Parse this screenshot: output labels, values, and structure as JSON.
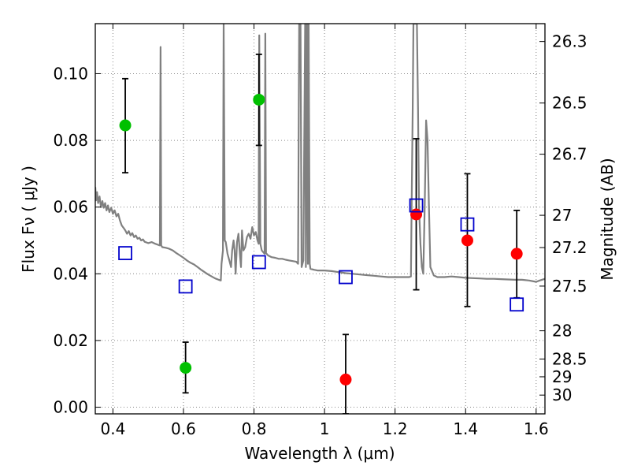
{
  "chart_data": {
    "type": "scatter",
    "title": "",
    "xlabel": "Wavelength  λ (μm)",
    "ylabel": "Flux  Fν  ( μJy )",
    "y2label": "Magnitude (AB)",
    "xlim": [
      0.35,
      1.625
    ],
    "ylim": [
      -0.002,
      0.115
    ],
    "grid": true,
    "x_ticks": [
      {
        "value": 0.4,
        "label": "0.4"
      },
      {
        "value": 0.6,
        "label": "0.6"
      },
      {
        "value": 0.8,
        "label": "0.8"
      },
      {
        "value": 1.0,
        "label": "1"
      },
      {
        "value": 1.2,
        "label": "1.2"
      },
      {
        "value": 1.4,
        "label": "1.4"
      },
      {
        "value": 1.6,
        "label": "1.6"
      }
    ],
    "y_ticks": [
      {
        "value": 0.0,
        "label": "0.00"
      },
      {
        "value": 0.02,
        "label": "0.02"
      },
      {
        "value": 0.04,
        "label": "0.04"
      },
      {
        "value": 0.06,
        "label": "0.06"
      },
      {
        "value": 0.08,
        "label": "0.08"
      },
      {
        "value": 0.1,
        "label": "0.10"
      }
    ],
    "y2_ticks": [
      {
        "value": 26.3,
        "label": "26.3"
      },
      {
        "value": 26.5,
        "label": "26.5"
      },
      {
        "value": 26.7,
        "label": "26.7"
      },
      {
        "value": 27.0,
        "label": "27"
      },
      {
        "value": 27.2,
        "label": "27.2"
      },
      {
        "value": 27.5,
        "label": "27.5"
      },
      {
        "value": 28.0,
        "label": "28"
      },
      {
        "value": 28.5,
        "label": "28.5"
      },
      {
        "value": 29.0,
        "label": "29"
      },
      {
        "value": 30.0,
        "label": "30"
      }
    ],
    "colors": {
      "model": "#808080",
      "green": "#00c000",
      "red": "#ff0000",
      "model_box": "#0000cc",
      "errorbar": "#000000",
      "grid": "#888888"
    },
    "series": [
      {
        "marker": "circle",
        "color": "green",
        "points": [
          {
            "x": 0.435,
            "y": 0.0845,
            "ylo": 0.0703,
            "yhi": 0.0985
          },
          {
            "x": 0.606,
            "y": 0.0118,
            "ylo": 0.0043,
            "yhi": 0.0195
          },
          {
            "x": 0.814,
            "y": 0.0922,
            "ylo": 0.0785,
            "yhi": 0.1058
          }
        ]
      },
      {
        "marker": "circle",
        "color": "red",
        "points": [
          {
            "x": 1.06,
            "y": 0.0083,
            "ylo": -0.002,
            "yhi": 0.0218
          },
          {
            "x": 1.26,
            "y": 0.0578,
            "ylo": 0.0352,
            "yhi": 0.0805
          },
          {
            "x": 1.405,
            "y": 0.05,
            "ylo": 0.0302,
            "yhi": 0.07
          },
          {
            "x": 1.545,
            "y": 0.046,
            "ylo": 0.0328,
            "yhi": 0.059
          }
        ]
      },
      {
        "marker": "square",
        "color": "model_box",
        "points": [
          {
            "x": 0.435,
            "y": 0.0462
          },
          {
            "x": 0.606,
            "y": 0.0362
          },
          {
            "x": 0.814,
            "y": 0.0435
          },
          {
            "x": 1.06,
            "y": 0.039
          },
          {
            "x": 1.26,
            "y": 0.0605
          },
          {
            "x": 1.405,
            "y": 0.0548
          },
          {
            "x": 1.545,
            "y": 0.0308
          }
        ]
      }
    ],
    "model_spectrum": {
      "color": "model",
      "points": [
        [
          0.35,
          0.066
        ],
        [
          0.352,
          0.062
        ],
        [
          0.355,
          0.0645
        ],
        [
          0.358,
          0.0612
        ],
        [
          0.362,
          0.0632
        ],
        [
          0.366,
          0.06
        ],
        [
          0.37,
          0.0618
        ],
        [
          0.374,
          0.0598
        ],
        [
          0.378,
          0.0612
        ],
        [
          0.382,
          0.059
        ],
        [
          0.386,
          0.0605
        ],
        [
          0.39,
          0.0585
        ],
        [
          0.395,
          0.0598
        ],
        [
          0.4,
          0.058
        ],
        [
          0.405,
          0.059
        ],
        [
          0.41,
          0.0572
        ],
        [
          0.415,
          0.058
        ],
        [
          0.42,
          0.056
        ],
        [
          0.425,
          0.0545
        ],
        [
          0.43,
          0.0538
        ],
        [
          0.435,
          0.053
        ],
        [
          0.44,
          0.052
        ],
        [
          0.445,
          0.0528
        ],
        [
          0.45,
          0.0515
        ],
        [
          0.455,
          0.0522
        ],
        [
          0.46,
          0.051
        ],
        [
          0.465,
          0.0515
        ],
        [
          0.47,
          0.0505
        ],
        [
          0.475,
          0.0508
        ],
        [
          0.48,
          0.05
        ],
        [
          0.485,
          0.0503
        ],
        [
          0.49,
          0.0496
        ],
        [
          0.5,
          0.0492
        ],
        [
          0.51,
          0.0495
        ],
        [
          0.52,
          0.049
        ],
        [
          0.53,
          0.0486
        ],
        [
          0.533,
          0.0485
        ],
        [
          0.535,
          0.108
        ],
        [
          0.537,
          0.0485
        ],
        [
          0.54,
          0.048
        ],
        [
          0.55,
          0.0478
        ],
        [
          0.56,
          0.0475
        ],
        [
          0.57,
          0.047
        ],
        [
          0.58,
          0.0462
        ],
        [
          0.59,
          0.0455
        ],
        [
          0.6,
          0.0448
        ],
        [
          0.61,
          0.044
        ],
        [
          0.62,
          0.0433
        ],
        [
          0.63,
          0.0428
        ],
        [
          0.64,
          0.042
        ],
        [
          0.65,
          0.0412
        ],
        [
          0.66,
          0.0405
        ],
        [
          0.67,
          0.0398
        ],
        [
          0.68,
          0.0392
        ],
        [
          0.69,
          0.0386
        ],
        [
          0.7,
          0.0382
        ],
        [
          0.706,
          0.038
        ],
        [
          0.708,
          0.043
        ],
        [
          0.712,
          0.047
        ],
        [
          0.714,
          0.115
        ],
        [
          0.717,
          0.05
        ],
        [
          0.72,
          0.0495
        ],
        [
          0.725,
          0.046
        ],
        [
          0.73,
          0.044
        ],
        [
          0.735,
          0.042
        ],
        [
          0.738,
          0.047
        ],
        [
          0.742,
          0.05
        ],
        [
          0.745,
          0.047
        ],
        [
          0.748,
          0.04
        ],
        [
          0.752,
          0.0495
        ],
        [
          0.756,
          0.052
        ],
        [
          0.76,
          0.046
        ],
        [
          0.763,
          0.042
        ],
        [
          0.766,
          0.053
        ],
        [
          0.77,
          0.047
        ],
        [
          0.775,
          0.048
        ],
        [
          0.78,
          0.051
        ],
        [
          0.785,
          0.052
        ],
        [
          0.79,
          0.0505
        ],
        [
          0.795,
          0.054
        ],
        [
          0.8,
          0.0515
        ],
        [
          0.805,
          0.0525
        ],
        [
          0.81,
          0.05
        ],
        [
          0.813,
          0.049
        ],
        [
          0.815,
          0.1115
        ],
        [
          0.818,
          0.049
        ],
        [
          0.822,
          0.047
        ],
        [
          0.826,
          0.0465
        ],
        [
          0.83,
          0.046
        ],
        [
          0.832,
          0.112
        ],
        [
          0.834,
          0.0462
        ],
        [
          0.84,
          0.0455
        ],
        [
          0.85,
          0.045
        ],
        [
          0.86,
          0.0448
        ],
        [
          0.87,
          0.0445
        ],
        [
          0.88,
          0.0445
        ],
        [
          0.89,
          0.0442
        ],
        [
          0.9,
          0.044
        ],
        [
          0.91,
          0.0438
        ],
        [
          0.92,
          0.0436
        ],
        [
          0.925,
          0.043
        ],
        [
          0.928,
          0.115
        ],
        [
          0.932,
          0.115
        ],
        [
          0.935,
          0.042
        ],
        [
          0.94,
          0.044
        ],
        [
          0.945,
          0.115
        ],
        [
          0.947,
          0.042
        ],
        [
          0.95,
          0.115
        ],
        [
          0.953,
          0.043
        ],
        [
          0.955,
          0.115
        ],
        [
          0.958,
          0.043
        ],
        [
          0.96,
          0.0415
        ],
        [
          0.97,
          0.0412
        ],
        [
          0.98,
          0.041
        ],
        [
          0.99,
          0.041
        ],
        [
          1.0,
          0.041
        ],
        [
          1.02,
          0.0408
        ],
        [
          1.04,
          0.0405
        ],
        [
          1.06,
          0.0402
        ],
        [
          1.08,
          0.04
        ],
        [
          1.1,
          0.0398
        ],
        [
          1.12,
          0.0396
        ],
        [
          1.14,
          0.0394
        ],
        [
          1.16,
          0.0392
        ],
        [
          1.18,
          0.039
        ],
        [
          1.2,
          0.039
        ],
        [
          1.22,
          0.039
        ],
        [
          1.24,
          0.039
        ],
        [
          1.245,
          0.0392
        ],
        [
          1.247,
          0.06
        ],
        [
          1.25,
          0.09
        ],
        [
          1.252,
          0.115
        ],
        [
          1.262,
          0.115
        ],
        [
          1.265,
          0.09
        ],
        [
          1.268,
          0.06
        ],
        [
          1.272,
          0.049
        ],
        [
          1.276,
          0.042
        ],
        [
          1.28,
          0.04
        ],
        [
          1.284,
          0.06
        ],
        [
          1.288,
          0.086
        ],
        [
          1.292,
          0.08
        ],
        [
          1.296,
          0.06
        ],
        [
          1.3,
          0.042
        ],
        [
          1.31,
          0.0395
        ],
        [
          1.32,
          0.039
        ],
        [
          1.34,
          0.039
        ],
        [
          1.36,
          0.0392
        ],
        [
          1.38,
          0.039
        ],
        [
          1.4,
          0.0388
        ],
        [
          1.42,
          0.0387
        ],
        [
          1.44,
          0.0386
        ],
        [
          1.46,
          0.0385
        ],
        [
          1.48,
          0.0385
        ],
        [
          1.5,
          0.0384
        ],
        [
          1.52,
          0.0383
        ],
        [
          1.54,
          0.0382
        ],
        [
          1.56,
          0.0382
        ],
        [
          1.58,
          0.038
        ],
        [
          1.6,
          0.0376
        ],
        [
          1.61,
          0.038
        ],
        [
          1.625,
          0.0385
        ]
      ]
    }
  }
}
